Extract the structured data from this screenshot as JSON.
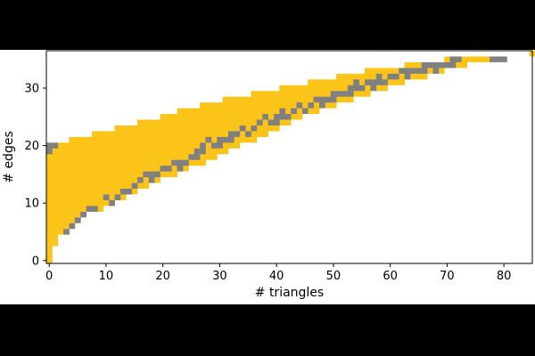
{
  "chart_data": {
    "type": "heatmap",
    "title": "",
    "xlabel": "# triangles",
    "ylabel": "# edges",
    "xlim": [
      -0.5,
      85
    ],
    "ylim": [
      -0.5,
      36.5
    ],
    "xticks": [
      0,
      10,
      20,
      30,
      40,
      50,
      60,
      70,
      80
    ],
    "yticks": [
      0,
      10,
      20,
      30
    ],
    "grid": false,
    "colors": {
      "yellow": "#fcc418",
      "gray": "#808080",
      "background": "#ffffff",
      "frame": "#000000"
    },
    "description_of_cells": "Each cell is (x=# triangles, y=# edges). 'yellow' lists one vertical band of cells per x as [x, y_min, y_max]; 'gray' lists gray cells as [x, y_min, y_max].",
    "yellow": [
      [
        0,
        0,
        20
      ],
      [
        1,
        3,
        20
      ],
      [
        2,
        5,
        20
      ],
      [
        3,
        6,
        20
      ],
      [
        4,
        7,
        21
      ],
      [
        5,
        8,
        21
      ],
      [
        6,
        9,
        21
      ],
      [
        7,
        9,
        21
      ],
      [
        8,
        9,
        22
      ],
      [
        9,
        9,
        22
      ],
      [
        10,
        10,
        22
      ],
      [
        11,
        10,
        22
      ],
      [
        12,
        11,
        23
      ],
      [
        13,
        11,
        23
      ],
      [
        14,
        12,
        23
      ],
      [
        15,
        12,
        23
      ],
      [
        16,
        13,
        24
      ],
      [
        17,
        13,
        24
      ],
      [
        18,
        14,
        24
      ],
      [
        19,
        14,
        24
      ],
      [
        20,
        15,
        25
      ],
      [
        21,
        15,
        25
      ],
      [
        22,
        15,
        25
      ],
      [
        23,
        16,
        26
      ],
      [
        24,
        16,
        26
      ],
      [
        25,
        17,
        26
      ],
      [
        26,
        17,
        26
      ],
      [
        27,
        17,
        27
      ],
      [
        28,
        18,
        27
      ],
      [
        29,
        18,
        27
      ],
      [
        30,
        19,
        27
      ],
      [
        31,
        19,
        28
      ],
      [
        32,
        20,
        28
      ],
      [
        33,
        20,
        28
      ],
      [
        34,
        21,
        28
      ],
      [
        35,
        21,
        28
      ],
      [
        36,
        21,
        29
      ],
      [
        37,
        22,
        29
      ],
      [
        38,
        22,
        29
      ],
      [
        39,
        23,
        29
      ],
      [
        40,
        23,
        29
      ],
      [
        41,
        24,
        30
      ],
      [
        42,
        24,
        30
      ],
      [
        43,
        25,
        30
      ],
      [
        44,
        25,
        30
      ],
      [
        45,
        26,
        30
      ],
      [
        46,
        26,
        31
      ],
      [
        47,
        26,
        31
      ],
      [
        48,
        27,
        31
      ],
      [
        49,
        27,
        31
      ],
      [
        50,
        27,
        31
      ],
      [
        51,
        28,
        32
      ],
      [
        52,
        28,
        32
      ],
      [
        53,
        28,
        32
      ],
      [
        54,
        29,
        32
      ],
      [
        55,
        29,
        32
      ],
      [
        56,
        29,
        33
      ],
      [
        57,
        30,
        33
      ],
      [
        58,
        30,
        33
      ],
      [
        59,
        30,
        33
      ],
      [
        60,
        31,
        33
      ],
      [
        61,
        31,
        33
      ],
      [
        62,
        31,
        33
      ],
      [
        63,
        32,
        34
      ],
      [
        64,
        32,
        34
      ],
      [
        65,
        32,
        34
      ],
      [
        66,
        32,
        34
      ],
      [
        67,
        33,
        34
      ],
      [
        68,
        33,
        34
      ],
      [
        69,
        33,
        34
      ],
      [
        70,
        34,
        35
      ],
      [
        71,
        34,
        35
      ],
      [
        72,
        34,
        35
      ],
      [
        73,
        34,
        35
      ],
      [
        74,
        35,
        35
      ],
      [
        75,
        35,
        35
      ],
      [
        76,
        35,
        35
      ],
      [
        77,
        35,
        35
      ],
      [
        85,
        36,
        36
      ]
    ],
    "gray": [
      [
        0,
        19,
        20
      ],
      [
        1,
        20,
        20
      ],
      [
        3,
        5,
        5
      ],
      [
        4,
        6,
        6
      ],
      [
        5,
        7,
        7
      ],
      [
        6,
        8,
        8
      ],
      [
        7,
        9,
        9
      ],
      [
        8,
        9,
        9
      ],
      [
        10,
        11,
        11
      ],
      [
        11,
        10,
        10
      ],
      [
        12,
        11,
        11
      ],
      [
        13,
        12,
        12
      ],
      [
        14,
        12,
        12
      ],
      [
        15,
        13,
        13
      ],
      [
        16,
        14,
        14
      ],
      [
        17,
        15,
        15
      ],
      [
        18,
        14,
        15
      ],
      [
        19,
        15,
        15
      ],
      [
        20,
        16,
        16
      ],
      [
        21,
        16,
        16
      ],
      [
        22,
        17,
        17
      ],
      [
        23,
        16,
        17
      ],
      [
        24,
        17,
        17
      ],
      [
        25,
        18,
        18
      ],
      [
        26,
        18,
        19
      ],
      [
        27,
        19,
        20
      ],
      [
        28,
        21,
        21
      ],
      [
        29,
        20,
        20
      ],
      [
        30,
        20,
        21
      ],
      [
        31,
        21,
        21
      ],
      [
        32,
        21,
        22
      ],
      [
        33,
        22,
        22
      ],
      [
        34,
        23,
        23
      ],
      [
        35,
        22,
        22
      ],
      [
        36,
        23,
        23
      ],
      [
        37,
        24,
        24
      ],
      [
        38,
        25,
        25
      ],
      [
        39,
        24,
        24
      ],
      [
        40,
        24,
        25
      ],
      [
        41,
        25,
        26
      ],
      [
        42,
        25,
        25
      ],
      [
        43,
        26,
        26
      ],
      [
        44,
        27,
        27
      ],
      [
        45,
        26,
        26
      ],
      [
        46,
        27,
        27
      ],
      [
        47,
        28,
        28
      ],
      [
        48,
        27,
        28
      ],
      [
        49,
        28,
        28
      ],
      [
        50,
        28,
        29
      ],
      [
        51,
        29,
        29
      ],
      [
        52,
        29,
        29
      ],
      [
        53,
        29,
        30
      ],
      [
        54,
        30,
        31
      ],
      [
        55,
        30,
        30
      ],
      [
        56,
        31,
        31
      ],
      [
        57,
        30,
        31
      ],
      [
        58,
        31,
        32
      ],
      [
        59,
        31,
        31
      ],
      [
        60,
        32,
        32
      ],
      [
        61,
        32,
        32
      ],
      [
        62,
        33,
        33
      ],
      [
        63,
        32,
        33
      ],
      [
        64,
        33,
        33
      ],
      [
        65,
        33,
        33
      ],
      [
        66,
        33,
        34
      ],
      [
        67,
        34,
        34
      ],
      [
        68,
        33,
        34
      ],
      [
        69,
        34,
        34
      ],
      [
        70,
        34,
        34
      ],
      [
        71,
        34,
        35
      ],
      [
        72,
        35,
        35
      ],
      [
        78,
        35,
        35
      ],
      [
        79,
        35,
        35
      ],
      [
        80,
        35,
        35
      ]
    ]
  }
}
